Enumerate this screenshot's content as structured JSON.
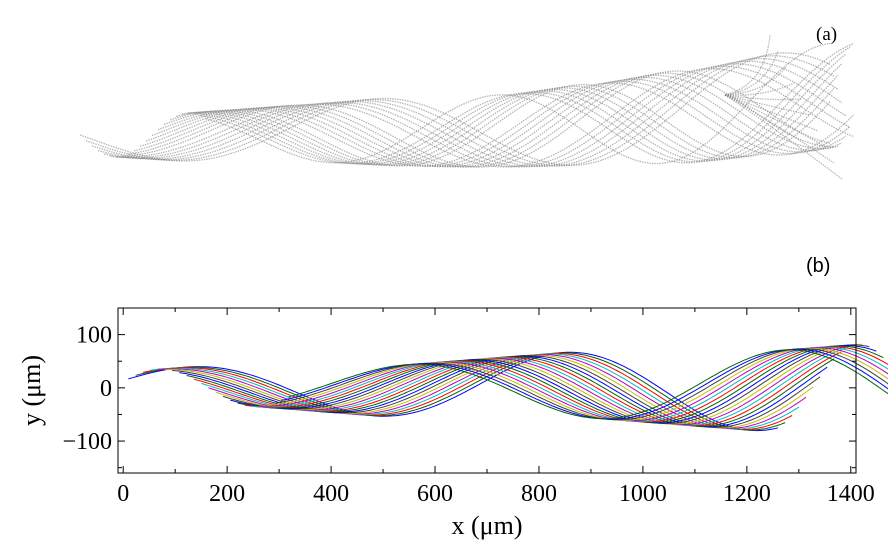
{
  "panels": {
    "a": {
      "label": "(a)"
    },
    "b": {
      "label": "(b)"
    }
  },
  "chart_data": {
    "type": "line",
    "title": "",
    "xlabel": "x  (μm)",
    "ylabel": "y  (μm)",
    "xlim": [
      -10,
      1410
    ],
    "ylim": [
      -160,
      150
    ],
    "xticks": [
      0,
      200,
      400,
      600,
      800,
      1000,
      1200,
      1400
    ],
    "yticks": [
      -100,
      0,
      100
    ],
    "xtick_labels": [
      "0",
      "200",
      "400",
      "600",
      "800",
      "1000",
      "1200",
      "1400"
    ],
    "ytick_labels": [
      "−100",
      "0",
      "100"
    ],
    "grid": false,
    "legend": "none",
    "series_count": 23,
    "series_color_cycle": [
      "#0000ff",
      "#006400",
      "#ff0000",
      "#00bfbf",
      "#bf00bf",
      "#bfbf00",
      "#404040"
    ],
    "series_shape": {
      "x_start_first": 10,
      "x_start_step": 14,
      "x_length_first": 1250,
      "x_length_step": -0.5,
      "wavelength": 720,
      "phase_step": 0.24,
      "amplitude_start": 35,
      "amplitude_end": 82,
      "midline_slope": 0.0
    }
  }
}
